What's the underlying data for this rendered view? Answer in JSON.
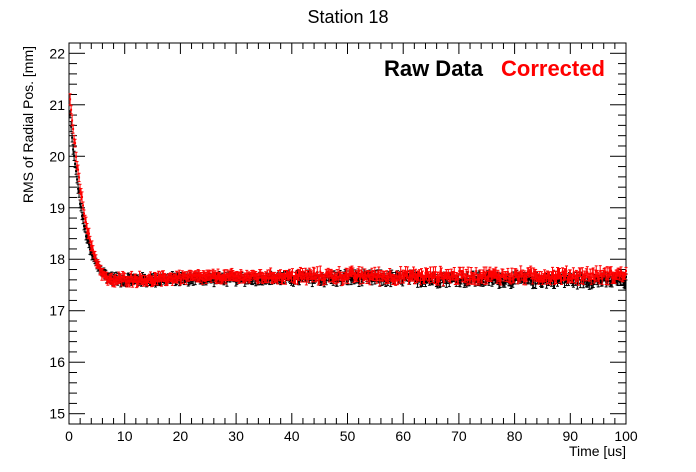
{
  "chart_data": {
    "type": "scatter",
    "title": "Station 18",
    "xlabel": "Time [us]",
    "ylabel": "RMS of Radial Pos. [mm]",
    "xlim": [
      0,
      100
    ],
    "ylim": [
      14.8,
      22.2
    ],
    "x_ticks": [
      0,
      10,
      20,
      30,
      40,
      50,
      60,
      70,
      80,
      90,
      100
    ],
    "y_ticks": [
      15,
      16,
      17,
      18,
      19,
      20,
      21,
      22
    ],
    "grid": false,
    "legend_position": "top-right",
    "series": [
      {
        "name": "Raw Data",
        "color": "#000000",
        "error_bar": 0.07,
        "points": [
          [
            0.2,
            20.8
          ],
          [
            0.5,
            20.4
          ],
          [
            1,
            19.9
          ],
          [
            1.5,
            19.5
          ],
          [
            2,
            19.1
          ],
          [
            2.5,
            18.75
          ],
          [
            3,
            18.5
          ],
          [
            3.5,
            18.3
          ],
          [
            4,
            18.1
          ],
          [
            5,
            17.9
          ],
          [
            6,
            17.75
          ],
          [
            7,
            17.65
          ],
          [
            8,
            17.62
          ],
          [
            10,
            17.6
          ],
          [
            15,
            17.6
          ],
          [
            20,
            17.62
          ],
          [
            30,
            17.62
          ],
          [
            40,
            17.63
          ],
          [
            50,
            17.63
          ],
          [
            60,
            17.62
          ],
          [
            70,
            17.62
          ],
          [
            80,
            17.6
          ],
          [
            90,
            17.6
          ],
          [
            100,
            17.58
          ]
        ]
      },
      {
        "name": "Corrected",
        "color": "#ff0000",
        "error_bar": 0.08,
        "points": [
          [
            0.2,
            21.1
          ],
          [
            0.5,
            20.7
          ],
          [
            1,
            20.3
          ],
          [
            1.5,
            19.8
          ],
          [
            2,
            19.4
          ],
          [
            2.5,
            19.05
          ],
          [
            3,
            18.75
          ],
          [
            3.5,
            18.5
          ],
          [
            4,
            18.25
          ],
          [
            5,
            17.95
          ],
          [
            6,
            17.72
          ],
          [
            7,
            17.6
          ],
          [
            8,
            17.58
          ],
          [
            10,
            17.62
          ],
          [
            15,
            17.6
          ],
          [
            20,
            17.65
          ],
          [
            30,
            17.66
          ],
          [
            40,
            17.67
          ],
          [
            50,
            17.68
          ],
          [
            60,
            17.67
          ],
          [
            70,
            17.68
          ],
          [
            80,
            17.68
          ],
          [
            90,
            17.68
          ],
          [
            100,
            17.7
          ]
        ]
      }
    ]
  }
}
